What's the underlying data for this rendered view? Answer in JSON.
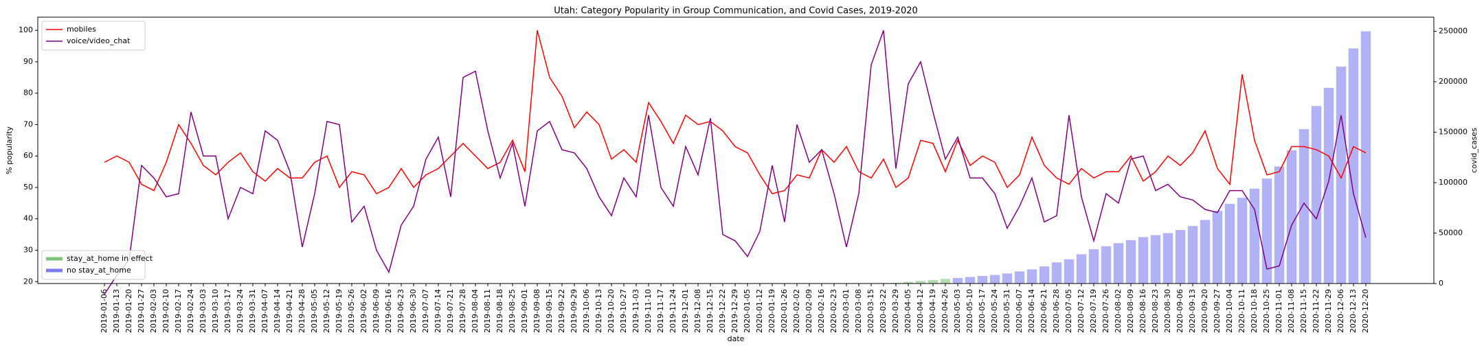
{
  "chart_data": {
    "type": "line",
    "title": "Utah: Category Popularity in Group Communication, and Covid Cases, 2019-2020",
    "x_label": "date",
    "y_label": "% popularity",
    "y2_label": "covid_cases",
    "categories": [
      "2019-01-06",
      "2019-01-13",
      "2019-01-20",
      "2019-01-27",
      "2019-02-03",
      "2019-02-10",
      "2019-02-17",
      "2019-02-24",
      "2019-03-03",
      "2019-03-10",
      "2019-03-17",
      "2019-03-24",
      "2019-03-31",
      "2019-04-07",
      "2019-04-14",
      "2019-04-21",
      "2019-04-28",
      "2019-05-05",
      "2019-05-12",
      "2019-05-19",
      "2019-05-26",
      "2019-06-02",
      "2019-06-09",
      "2019-06-16",
      "2019-06-23",
      "2019-06-30",
      "2019-07-07",
      "2019-07-14",
      "2019-07-21",
      "2019-07-28",
      "2019-08-04",
      "2019-08-11",
      "2019-08-18",
      "2019-08-25",
      "2019-09-01",
      "2019-09-08",
      "2019-09-15",
      "2019-09-22",
      "2019-09-29",
      "2019-10-06",
      "2019-10-13",
      "2019-10-20",
      "2019-10-27",
      "2019-11-03",
      "2019-11-10",
      "2019-11-17",
      "2019-11-24",
      "2019-12-01",
      "2019-12-08",
      "2019-12-15",
      "2019-12-22",
      "2019-12-29",
      "2020-01-05",
      "2020-01-12",
      "2020-01-19",
      "2020-01-26",
      "2020-02-02",
      "2020-02-09",
      "2020-02-16",
      "2020-02-23",
      "2020-03-01",
      "2020-03-08",
      "2020-03-15",
      "2020-03-22",
      "2020-03-29",
      "2020-04-05",
      "2020-04-12",
      "2020-04-19",
      "2020-04-26",
      "2020-05-03",
      "2020-05-10",
      "2020-05-17",
      "2020-05-24",
      "2020-05-31",
      "2020-06-07",
      "2020-06-14",
      "2020-06-21",
      "2020-06-28",
      "2020-07-05",
      "2020-07-12",
      "2020-07-19",
      "2020-07-26",
      "2020-08-02",
      "2020-08-09",
      "2020-08-16",
      "2020-08-23",
      "2020-08-30",
      "2020-09-06",
      "2020-09-13",
      "2020-09-20",
      "2020-09-27",
      "2020-10-04",
      "2020-10-11",
      "2020-10-18",
      "2020-10-25",
      "2020-11-01",
      "2020-11-08",
      "2020-11-15",
      "2020-11-22",
      "2020-11-29",
      "2020-12-06",
      "2020-12-13",
      "2020-12-20"
    ],
    "series": [
      {
        "name": "mobiles",
        "color": "#ff0000",
        "mark": "line",
        "axis": "y",
        "legend": "upper left",
        "values": [
          58,
          60,
          58,
          51,
          49,
          58,
          70,
          64,
          57,
          54,
          58,
          61,
          55,
          52,
          56,
          53,
          53,
          58,
          60,
          50,
          55,
          54,
          48,
          50,
          56,
          50,
          54,
          56,
          60,
          64,
          60,
          56,
          58,
          65,
          55,
          100,
          85,
          79,
          69,
          74,
          70,
          59,
          62,
          58,
          77,
          71,
          64,
          73,
          70,
          71,
          68,
          63,
          61,
          54,
          48,
          49,
          54,
          53,
          62,
          58,
          63,
          55,
          53,
          59,
          50,
          53,
          65,
          64,
          55,
          65,
          57,
          60,
          58,
          50,
          54,
          66,
          57,
          53,
          51,
          56,
          53,
          55,
          55,
          60,
          52,
          55,
          60,
          57,
          61,
          68,
          56,
          51,
          86,
          65,
          54,
          55,
          63,
          63,
          62,
          60,
          53,
          63,
          61
        ]
      },
      {
        "name": "voice/video_chat",
        "color": "#800080",
        "mark": "line",
        "axis": "y",
        "legend": "upper left",
        "values": [
          16,
          22,
          27,
          57,
          53,
          47,
          48,
          74,
          60,
          60,
          40,
          50,
          48,
          68,
          65,
          55,
          31,
          48,
          71,
          70,
          39,
          44,
          30,
          23,
          38,
          44,
          59,
          66,
          47,
          85,
          87,
          68,
          53,
          64,
          44,
          68,
          71,
          62,
          61,
          56,
          47,
          41,
          53,
          47,
          73,
          50,
          44,
          63,
          54,
          72,
          35,
          33,
          28,
          36,
          57,
          39,
          70,
          58,
          62,
          48,
          31,
          48,
          89,
          100,
          56,
          83,
          90,
          74,
          59,
          66,
          53,
          53,
          48,
          37,
          44,
          53,
          39,
          41,
          73,
          47,
          33,
          48,
          45,
          59,
          60,
          49,
          51,
          47,
          46,
          43,
          42,
          49,
          49,
          43,
          24,
          25,
          38,
          45,
          40,
          52,
          73,
          48,
          34
        ]
      },
      {
        "name": "stay_at_home in effect",
        "color": "#66bb66",
        "mark": "bar",
        "axis": "y2",
        "legend": "lower left",
        "values": [
          null,
          null,
          null,
          null,
          null,
          null,
          null,
          null,
          null,
          null,
          null,
          null,
          null,
          null,
          null,
          null,
          null,
          null,
          null,
          null,
          null,
          null,
          null,
          null,
          null,
          null,
          null,
          null,
          null,
          null,
          null,
          null,
          null,
          null,
          null,
          null,
          null,
          null,
          null,
          null,
          null,
          null,
          null,
          null,
          null,
          null,
          null,
          null,
          null,
          null,
          null,
          null,
          null,
          null,
          null,
          null,
          null,
          null,
          null,
          null,
          null,
          null,
          null,
          null,
          800,
          1600,
          2600,
          3500,
          4600,
          null,
          null,
          null,
          null,
          null,
          null,
          null,
          null,
          null,
          null,
          null,
          null,
          null,
          null,
          null,
          null,
          null,
          null,
          null,
          null,
          null,
          null,
          null,
          null,
          null,
          null,
          null,
          null,
          null,
          null,
          null,
          null,
          null,
          null
        ]
      },
      {
        "name": "no stay_at_home",
        "color": "#6666ee",
        "mark": "bar",
        "axis": "y2",
        "legend": "lower left",
        "values": [
          null,
          null,
          null,
          null,
          null,
          null,
          null,
          null,
          null,
          null,
          null,
          null,
          null,
          null,
          null,
          null,
          null,
          null,
          null,
          null,
          null,
          null,
          null,
          null,
          null,
          null,
          null,
          null,
          null,
          null,
          null,
          null,
          null,
          null,
          null,
          null,
          null,
          null,
          null,
          null,
          null,
          null,
          null,
          null,
          null,
          null,
          null,
          null,
          null,
          null,
          null,
          null,
          null,
          null,
          null,
          null,
          null,
          null,
          null,
          null,
          null,
          20,
          100,
          400,
          null,
          null,
          null,
          null,
          null,
          5500,
          6500,
          7500,
          8500,
          10000,
          12000,
          14000,
          17000,
          21000,
          24000,
          29000,
          34000,
          37000,
          40000,
          43000,
          46000,
          48000,
          50000,
          53000,
          57000,
          63000,
          72000,
          79000,
          85000,
          94000,
          104000,
          116000,
          132000,
          153000,
          176000,
          194000,
          215000,
          233000,
          250000
        ]
      }
    ],
    "ylim": [
      19.4,
      104.2
    ],
    "yticks": [
      20,
      30,
      40,
      50,
      60,
      70,
      80,
      90,
      100
    ],
    "y2lim": [
      0,
      264000
    ],
    "y2ticks": [
      0,
      50000,
      100000,
      150000,
      200000,
      250000
    ]
  }
}
